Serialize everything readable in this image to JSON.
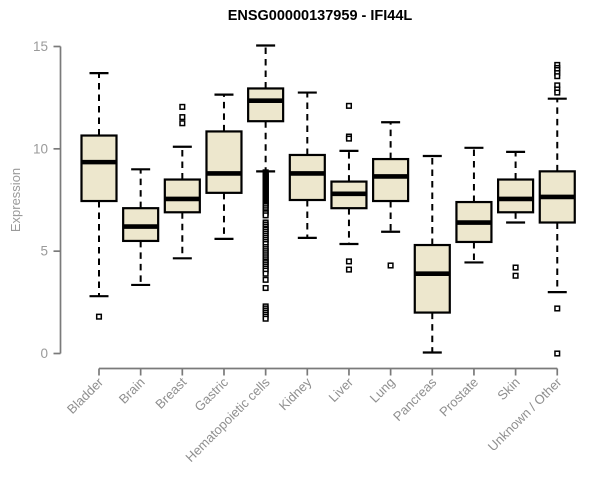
{
  "chart_data": {
    "type": "box",
    "title": "ENSG00000137959 - IFI44L",
    "ylabel": "Expression",
    "xlabel": "",
    "ylim": [
      0,
      15
    ],
    "yticks": [
      0,
      5,
      10,
      15
    ],
    "grid": false,
    "legend": "none",
    "categories": [
      "Bladder",
      "Brain",
      "Breast",
      "Gastric",
      "Hematopoietic cells",
      "Kidney",
      "Liver",
      "Lung",
      "Pancreas",
      "Prostate",
      "Skin",
      "Unknown / Other"
    ],
    "series": [
      {
        "name": "Bladder",
        "low": 2.8,
        "q1": 7.45,
        "median": 9.35,
        "q3": 10.65,
        "high": 13.7,
        "outliers": [
          1.8
        ]
      },
      {
        "name": "Brain",
        "low": 3.35,
        "q1": 5.5,
        "median": 6.2,
        "q3": 7.1,
        "high": 9.0,
        "outliers": []
      },
      {
        "name": "Breast",
        "low": 4.65,
        "q1": 6.9,
        "median": 7.55,
        "q3": 8.5,
        "high": 10.1,
        "outliers": [
          12.05,
          11.55,
          11.25
        ]
      },
      {
        "name": "Gastric",
        "low": 5.6,
        "q1": 7.85,
        "median": 8.8,
        "q3": 10.85,
        "high": 12.65,
        "outliers": []
      },
      {
        "name": "Hematopoietic cells",
        "low": 8.9,
        "q1": 11.35,
        "median": 12.35,
        "q3": 12.95,
        "high": 15.05,
        "outliers": [
          8.85,
          8.8,
          8.75,
          8.7,
          8.65,
          8.6,
          8.55,
          8.5,
          8.45,
          8.4,
          8.35,
          8.3,
          8.25,
          8.2,
          8.15,
          8.1,
          8.05,
          8.0,
          7.95,
          7.9,
          7.85,
          7.8,
          7.75,
          7.7,
          7.65,
          7.6,
          7.55,
          7.5,
          7.45,
          7.4,
          7.35,
          7.3,
          7.25,
          7.2,
          7.1,
          7.0,
          6.9,
          6.85,
          6.75,
          6.4,
          6.3,
          6.2,
          6.1,
          6.05,
          5.95,
          5.85,
          5.75,
          5.65,
          5.55,
          5.45,
          5.35,
          5.2,
          5.1,
          5.0,
          4.9,
          4.8,
          4.7,
          4.6,
          4.5,
          4.45,
          4.35,
          4.25,
          4.15,
          4.05,
          3.9,
          3.6,
          3.2,
          2.3,
          2.2,
          2.1,
          2.0,
          1.9,
          1.8,
          1.7
        ]
      },
      {
        "name": "Kidney",
        "low": 5.65,
        "q1": 7.5,
        "median": 8.8,
        "q3": 9.7,
        "high": 12.75,
        "outliers": []
      },
      {
        "name": "Liver",
        "low": 5.35,
        "q1": 7.1,
        "median": 7.8,
        "q3": 8.4,
        "high": 9.9,
        "outliers": [
          12.1,
          10.6,
          10.5,
          4.5,
          4.1
        ]
      },
      {
        "name": "Lung",
        "low": 5.95,
        "q1": 7.45,
        "median": 8.65,
        "q3": 9.5,
        "high": 11.3,
        "outliers": [
          4.3
        ]
      },
      {
        "name": "Pancreas",
        "low": 0.05,
        "q1": 2.0,
        "median": 3.9,
        "q3": 5.3,
        "high": 9.65,
        "outliers": []
      },
      {
        "name": "Prostate",
        "low": 4.45,
        "q1": 5.45,
        "median": 6.4,
        "q3": 7.4,
        "high": 10.05,
        "outliers": []
      },
      {
        "name": "Skin",
        "low": 6.4,
        "q1": 6.9,
        "median": 7.55,
        "q3": 8.5,
        "high": 9.85,
        "outliers": [
          4.2,
          3.8
        ]
      },
      {
        "name": "Unknown / Other",
        "low": 3.0,
        "q1": 6.4,
        "median": 7.65,
        "q3": 8.9,
        "high": 12.45,
        "outliers": [
          14.1,
          13.95,
          13.85,
          13.7,
          13.55,
          13.1,
          12.9,
          12.75,
          2.2,
          0.0
        ]
      }
    ],
    "colors": {
      "box_fill": "#ede7cd",
      "box_stroke": "#000000",
      "median": "#000000",
      "whisker": "#000000",
      "outlier_stroke": "#000000",
      "outlier_fill": "#ffffff",
      "axis": "#7a7a7a",
      "tick_label": "#9a9a9a",
      "category_label": "#8f8f8f",
      "title": "#000000",
      "background": "#ffffff"
    }
  }
}
